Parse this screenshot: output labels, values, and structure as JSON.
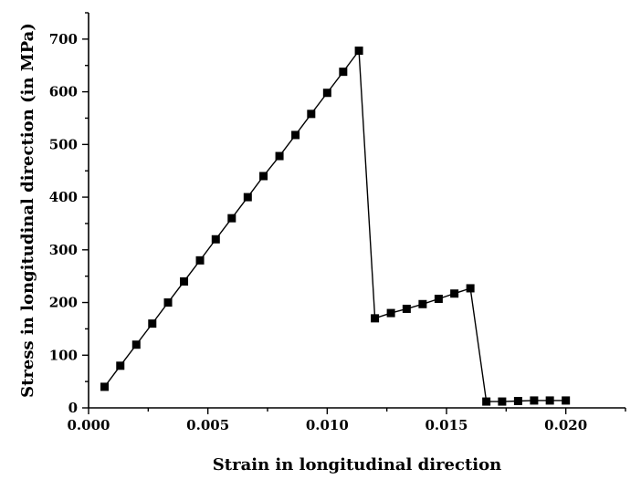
{
  "chart_data": {
    "type": "line",
    "title": "",
    "xlabel": "Strain in longitudinal direction",
    "ylabel": "Stress in longitudinal direction (in MPa)",
    "xlim": [
      0.0,
      0.0225
    ],
    "ylim": [
      0,
      750
    ],
    "x_ticks": [
      "0.000",
      "0.005",
      "0.010",
      "0.015",
      "0.020"
    ],
    "y_ticks": [
      "0",
      "100",
      "200",
      "300",
      "400",
      "500",
      "600",
      "700"
    ],
    "grid": false,
    "marker": "square",
    "series_color": "#000000",
    "series": [
      {
        "points": [
          [
            0.00067,
            40
          ],
          [
            0.00133,
            80
          ],
          [
            0.002,
            120
          ],
          [
            0.00267,
            160
          ],
          [
            0.00333,
            200
          ],
          [
            0.004,
            240
          ],
          [
            0.00467,
            280
          ],
          [
            0.00533,
            320
          ],
          [
            0.006,
            360
          ],
          [
            0.00667,
            400
          ],
          [
            0.00733,
            440
          ],
          [
            0.008,
            478
          ],
          [
            0.00867,
            518
          ],
          [
            0.00933,
            558
          ],
          [
            0.01,
            598
          ],
          [
            0.01067,
            638
          ],
          [
            0.01133,
            678
          ],
          [
            0.012,
            170
          ],
          [
            0.01267,
            180
          ],
          [
            0.01333,
            188
          ],
          [
            0.014,
            197
          ],
          [
            0.01467,
            207
          ],
          [
            0.01533,
            217
          ],
          [
            0.016,
            227
          ],
          [
            0.01667,
            12
          ],
          [
            0.01733,
            12
          ],
          [
            0.018,
            13
          ],
          [
            0.01867,
            14
          ],
          [
            0.01933,
            14
          ],
          [
            0.02,
            14
          ]
        ]
      }
    ]
  }
}
